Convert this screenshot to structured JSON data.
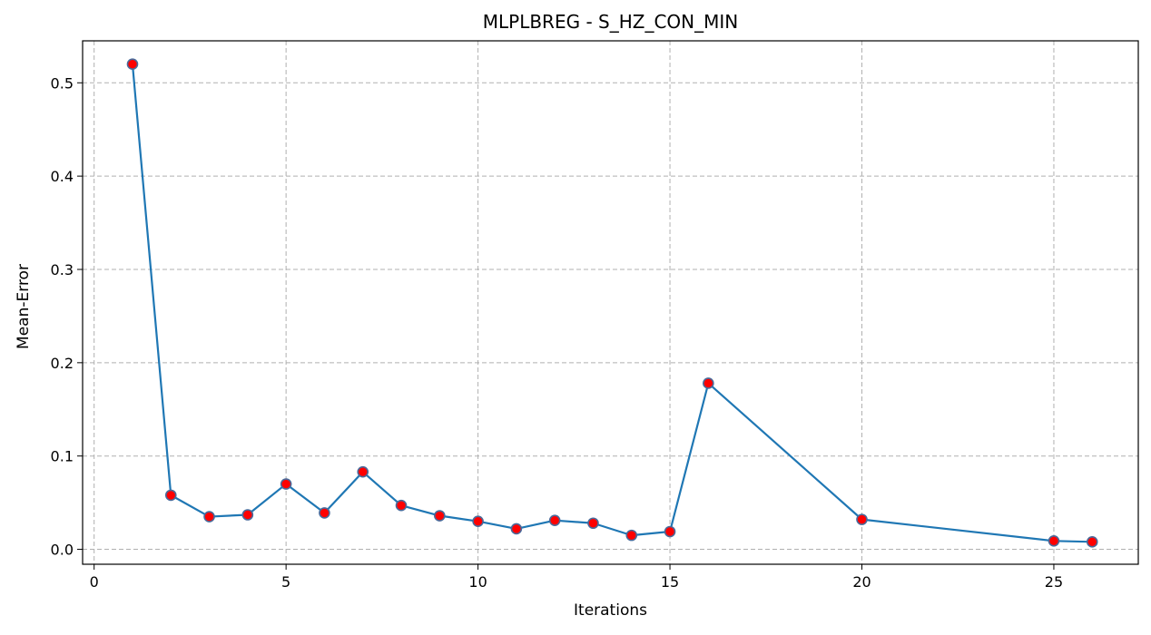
{
  "chart_data": {
    "type": "line",
    "title": "MLPLBREG - S_HZ_CON_MIN",
    "xlabel": "Iterations",
    "ylabel": "Mean-Error",
    "x": [
      1,
      2,
      3,
      4,
      5,
      6,
      7,
      8,
      9,
      10,
      11,
      12,
      13,
      14,
      15,
      16,
      20,
      25,
      26
    ],
    "series": [
      {
        "values": [
          0.52,
          0.058,
          0.035,
          0.037,
          0.07,
          0.039,
          0.083,
          0.047,
          0.036,
          0.03,
          0.022,
          0.031,
          0.028,
          0.015,
          0.019,
          0.178,
          0.032,
          0.009,
          0.008
        ]
      }
    ],
    "xlim": [
      -0.3,
      27.2
    ],
    "ylim": [
      -0.016,
      0.545
    ],
    "xticks": [
      0,
      5,
      10,
      15,
      20,
      25
    ],
    "yticks": [
      0.0,
      0.1,
      0.2,
      0.3,
      0.4,
      0.5
    ],
    "xtick_labels": [
      "0",
      "5",
      "10",
      "15",
      "20",
      "25"
    ],
    "ytick_labels": [
      "0.0",
      "0.1",
      "0.2",
      "0.3",
      "0.4",
      "0.5"
    ],
    "grid": true,
    "grid_style": "dashed",
    "colors": {
      "line": "#1f77b4",
      "marker_fill": "#ff0000",
      "marker_edge": "#4a6a9a",
      "grid": "#b0b0b0"
    }
  }
}
